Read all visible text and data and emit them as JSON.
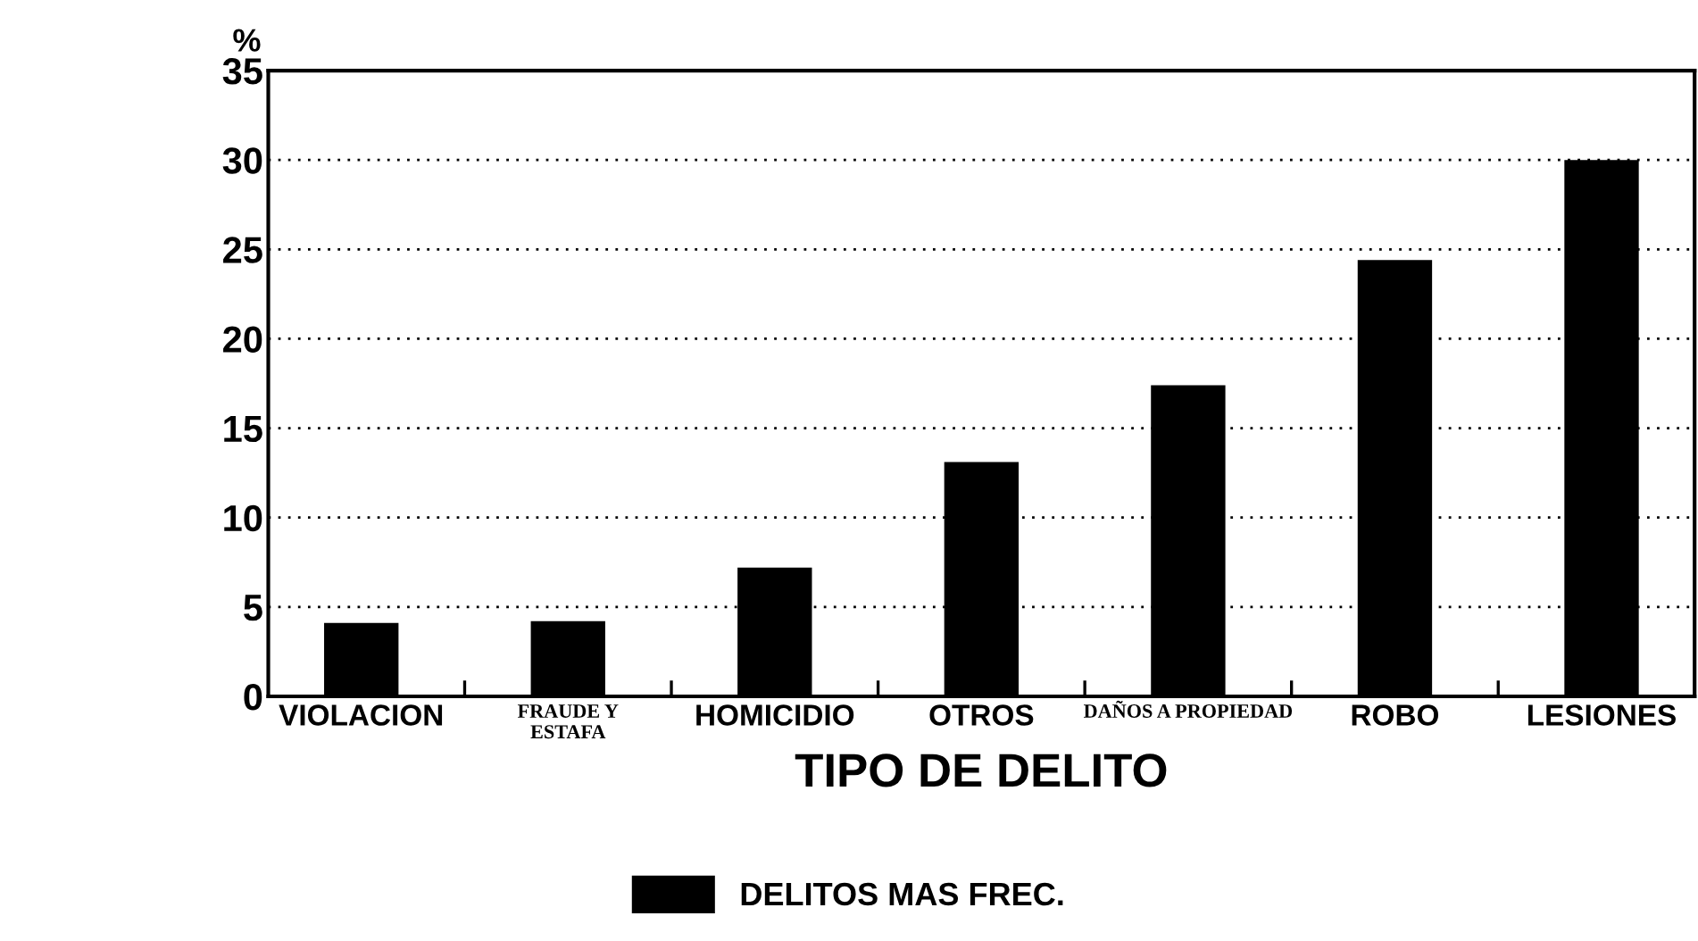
{
  "chart_data": {
    "type": "bar",
    "ylabel": "%",
    "xlabel": "TIPO DE DELITO",
    "categories": [
      "VIOLACION",
      "FRAUDE Y\nESTAFA",
      "HOMICIDIO",
      "OTROS",
      "DAÑOS A PROPIEDAD",
      "ROBO",
      "LESIONES"
    ],
    "series": [
      {
        "name": "DELITOS MAS FREC.",
        "color": "#000000",
        "values": [
          4.1,
          4.2,
          7.2,
          13.1,
          17.4,
          24.4,
          30.0
        ]
      }
    ],
    "ylim": [
      0,
      35
    ],
    "yticks": [
      0,
      5,
      10,
      15,
      20,
      25,
      30,
      35
    ],
    "grid": "y",
    "legend": "bottom"
  }
}
